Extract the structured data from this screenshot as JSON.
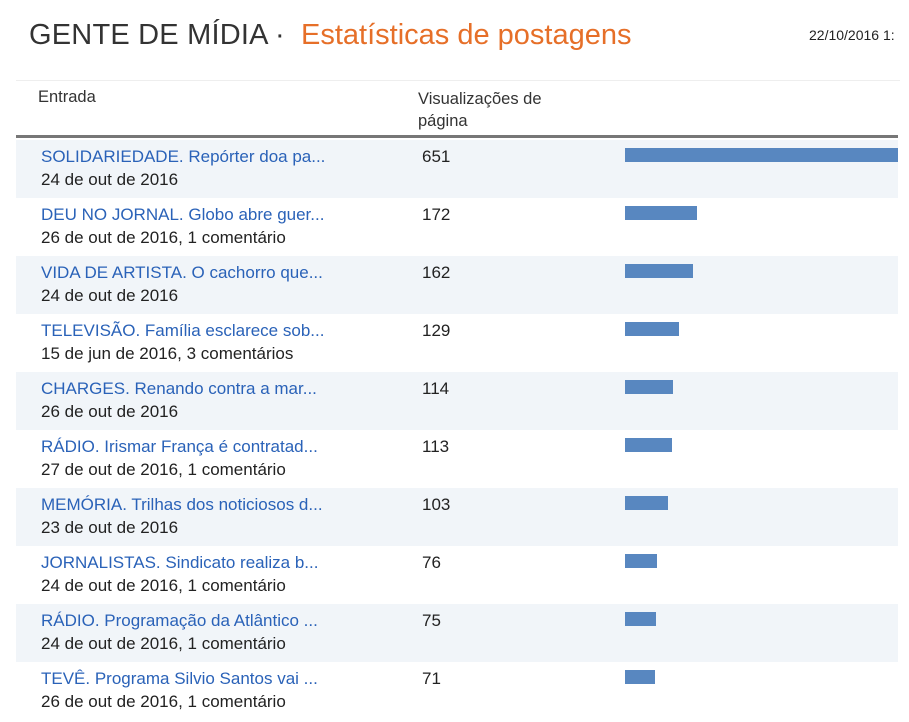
{
  "header": {
    "site_title": "GENTE DE MÍDIA",
    "separator": "·",
    "page_title": "Estatísticas de postagens",
    "date": "22/10/2016 1:"
  },
  "columns": {
    "entry": "Entrada",
    "views": "Visualizações de página"
  },
  "colors": {
    "link": "#2a62b8",
    "accent": "#e66f28",
    "bar": "#5887c0"
  },
  "max_views": 651,
  "rows": [
    {
      "title": "SOLIDARIEDADE. Repórter doa pa...",
      "meta": "24 de out de 2016",
      "views": 651
    },
    {
      "title": "DEU NO JORNAL. Globo abre guer...",
      "meta": "26 de out de 2016, 1 comentário",
      "views": 172
    },
    {
      "title": "VIDA DE ARTISTA. O cachorro que...",
      "meta": "24 de out de 2016",
      "views": 162
    },
    {
      "title": "TELEVISÃO. Família esclarece sob...",
      "meta": "15 de jun de 2016, 3 comentários",
      "views": 129
    },
    {
      "title": "CHARGES. Renando contra a mar...",
      "meta": "26 de out de 2016",
      "views": 114
    },
    {
      "title": "RÁDIO. Irismar França é contratad...",
      "meta": "27 de out de 2016, 1 comentário",
      "views": 113
    },
    {
      "title": "MEMÓRIA. Trilhas dos noticiosos d...",
      "meta": "23 de out de 2016",
      "views": 103
    },
    {
      "title": "JORNALISTAS. Sindicato realiza b...",
      "meta": "24 de out de 2016, 1 comentário",
      "views": 76
    },
    {
      "title": "RÁDIO. Programação da Atlântico ...",
      "meta": "24 de out de 2016, 1 comentário",
      "views": 75
    },
    {
      "title": "TEVÊ. Programa Silvio Santos vai ...",
      "meta": "26 de out de 2016, 1 comentário",
      "views": 71
    }
  ]
}
